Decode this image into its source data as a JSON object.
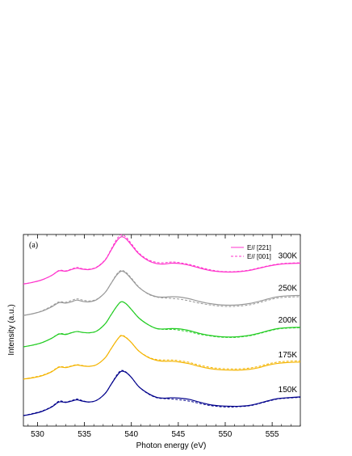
{
  "chart_data": {
    "type": "line",
    "panel_label": "(a)",
    "xlabel": "Photon energy (eV)",
    "ylabel": "Intensity (a.u.)",
    "xlim": [
      528.5,
      558
    ],
    "ylim": [
      0,
      23
    ],
    "x_ticks": [
      530,
      535,
      540,
      545,
      550,
      555
    ],
    "legend": {
      "placement": "top-right",
      "entries": [
        {
          "label": "E// [221]",
          "style": "solid"
        },
        {
          "label": "E// [001]",
          "style": "dashed"
        }
      ]
    },
    "x": [
      528.5,
      529.5,
      530.5,
      531.5,
      532.3,
      533.0,
      533.6,
      534.2,
      534.8,
      535.5,
      536.3,
      537.2,
      537.8,
      538.4,
      538.9,
      539.4,
      540.0,
      540.8,
      541.8,
      542.7,
      543.5,
      544.3,
      545.2,
      546.2,
      547.2,
      548.3,
      549.4,
      550.5,
      551.5,
      552.6,
      553.6,
      554.6,
      555.6,
      556.6,
      558.0
    ],
    "series": [
      {
        "name": "150K",
        "color": "#00008b",
        "offset": 0,
        "solid": [
          0.0,
          0.2,
          0.5,
          1.0,
          1.6,
          1.55,
          1.7,
          1.85,
          1.7,
          1.6,
          1.8,
          2.6,
          3.6,
          4.6,
          5.2,
          5.1,
          4.5,
          3.4,
          2.6,
          2.15,
          2.05,
          2.1,
          2.05,
          1.9,
          1.6,
          1.3,
          1.15,
          1.1,
          1.1,
          1.2,
          1.45,
          1.75,
          2.0,
          2.1,
          2.2
        ],
        "dashed": [
          0.0,
          0.25,
          0.55,
          1.05,
          1.7,
          1.6,
          1.75,
          1.95,
          1.75,
          1.6,
          1.8,
          2.6,
          3.6,
          4.7,
          5.3,
          5.15,
          4.5,
          3.4,
          2.55,
          2.1,
          2.0,
          1.95,
          1.85,
          1.7,
          1.45,
          1.2,
          1.05,
          1.0,
          1.05,
          1.15,
          1.4,
          1.7,
          1.95,
          2.05,
          2.15
        ]
      },
      {
        "name": "175K",
        "color": "#f4b400",
        "offset": 4.3,
        "solid": [
          0.0,
          0.15,
          0.4,
          0.85,
          1.4,
          1.35,
          1.5,
          1.65,
          1.55,
          1.5,
          1.7,
          2.5,
          3.5,
          4.5,
          5.1,
          4.9,
          4.3,
          3.3,
          2.55,
          2.2,
          2.1,
          2.1,
          2.0,
          1.8,
          1.5,
          1.25,
          1.1,
          1.05,
          1.05,
          1.15,
          1.35,
          1.65,
          1.85,
          1.95,
          2.0
        ],
        "dashed": [
          0.0,
          0.2,
          0.45,
          0.9,
          1.45,
          1.4,
          1.55,
          1.7,
          1.6,
          1.5,
          1.7,
          2.5,
          3.5,
          4.5,
          5.15,
          4.95,
          4.3,
          3.3,
          2.6,
          2.3,
          2.25,
          2.25,
          2.15,
          1.95,
          1.65,
          1.4,
          1.25,
          1.2,
          1.2,
          1.3,
          1.5,
          1.8,
          2.0,
          2.1,
          2.15
        ]
      },
      {
        "name": "200K",
        "color": "#22cc22",
        "offset": 8.1,
        "solid": [
          0.0,
          0.2,
          0.5,
          1.0,
          1.5,
          1.45,
          1.65,
          1.8,
          1.7,
          1.65,
          1.85,
          2.7,
          3.7,
          4.7,
          5.3,
          5.1,
          4.4,
          3.4,
          2.6,
          2.15,
          2.1,
          2.15,
          2.1,
          1.9,
          1.6,
          1.35,
          1.2,
          1.15,
          1.2,
          1.35,
          1.6,
          1.9,
          2.15,
          2.25,
          2.3
        ],
        "dashed": [
          0.0,
          0.2,
          0.5,
          1.0,
          1.55,
          1.5,
          1.65,
          1.8,
          1.7,
          1.65,
          1.85,
          2.7,
          3.7,
          4.7,
          5.3,
          5.1,
          4.4,
          3.4,
          2.6,
          2.15,
          2.05,
          2.05,
          1.95,
          1.75,
          1.5,
          1.3,
          1.15,
          1.1,
          1.15,
          1.3,
          1.55,
          1.85,
          2.1,
          2.2,
          2.25
        ]
      },
      {
        "name": "250K",
        "color": "#999999",
        "offset": 11.8,
        "solid": [
          0.0,
          0.2,
          0.5,
          1.0,
          1.5,
          1.45,
          1.6,
          1.8,
          1.65,
          1.6,
          1.85,
          2.7,
          3.7,
          4.7,
          5.2,
          5.0,
          4.3,
          3.3,
          2.55,
          2.2,
          2.15,
          2.2,
          2.15,
          1.95,
          1.65,
          1.4,
          1.25,
          1.2,
          1.25,
          1.4,
          1.65,
          1.95,
          2.2,
          2.3,
          2.35
        ],
        "dashed": [
          0.0,
          0.2,
          0.55,
          1.1,
          1.6,
          1.55,
          1.75,
          1.95,
          1.8,
          1.7,
          1.9,
          2.7,
          3.7,
          4.8,
          5.3,
          5.1,
          4.4,
          3.35,
          2.5,
          2.15,
          2.05,
          2.0,
          1.9,
          1.7,
          1.45,
          1.25,
          1.1,
          1.05,
          1.1,
          1.25,
          1.5,
          1.8,
          2.05,
          2.15,
          2.2
        ]
      },
      {
        "name": "300K",
        "color": "#ff33cc",
        "offset": 15.5,
        "solid": [
          0.0,
          0.2,
          0.5,
          1.0,
          1.55,
          1.5,
          1.7,
          1.85,
          1.75,
          1.7,
          1.95,
          2.8,
          3.9,
          5.0,
          5.55,
          5.35,
          4.6,
          3.55,
          2.75,
          2.4,
          2.35,
          2.45,
          2.4,
          2.2,
          1.9,
          1.6,
          1.45,
          1.4,
          1.45,
          1.6,
          1.85,
          2.1,
          2.3,
          2.4,
          2.45
        ],
        "dashed": [
          0.0,
          0.2,
          0.5,
          1.0,
          1.6,
          1.55,
          1.75,
          1.95,
          1.8,
          1.75,
          2.0,
          2.85,
          4.0,
          5.2,
          5.8,
          5.55,
          4.75,
          3.65,
          2.85,
          2.55,
          2.5,
          2.6,
          2.5,
          2.3,
          2.0,
          1.7,
          1.5,
          1.45,
          1.5,
          1.65,
          1.9,
          2.15,
          2.35,
          2.45,
          2.5
        ]
      }
    ]
  }
}
